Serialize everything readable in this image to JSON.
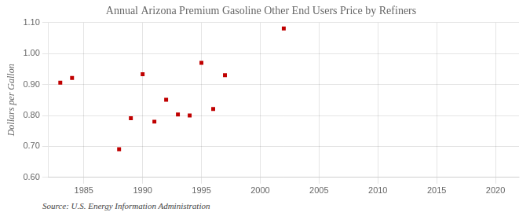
{
  "chart_data": {
    "type": "scatter",
    "title": "Annual Arizona Premium Gasoline Other End Users Price by Refiners",
    "ylabel": "Dollars per Gallon",
    "annotation": "Source: U.S. Energy Information Administration",
    "x": [
      1983,
      1984,
      1988,
      1989,
      1990,
      1991,
      1992,
      1993,
      1994,
      1995,
      1996,
      1997,
      2002
    ],
    "values": [
      0.906,
      0.921,
      0.691,
      0.791,
      0.933,
      0.78,
      0.851,
      0.803,
      0.8,
      0.97,
      0.821,
      0.93,
      1.081
    ],
    "color": "#c00000",
    "marker": "square",
    "xlim": [
      1982,
      2022
    ],
    "ylim": [
      0.6,
      1.1
    ],
    "xticks": [
      1985,
      1990,
      1995,
      2000,
      2005,
      2010,
      2015,
      2020
    ],
    "yticks": [
      {
        "value": 0.6,
        "label": "0.60"
      },
      {
        "value": 0.7,
        "label": "0.70"
      },
      {
        "value": 0.8,
        "label": "0.80"
      },
      {
        "value": 0.9,
        "label": "0.90"
      },
      {
        "value": 1.0,
        "label": "1.00"
      },
      {
        "value": 1.1,
        "label": "1.10"
      }
    ],
    "grid": true
  }
}
